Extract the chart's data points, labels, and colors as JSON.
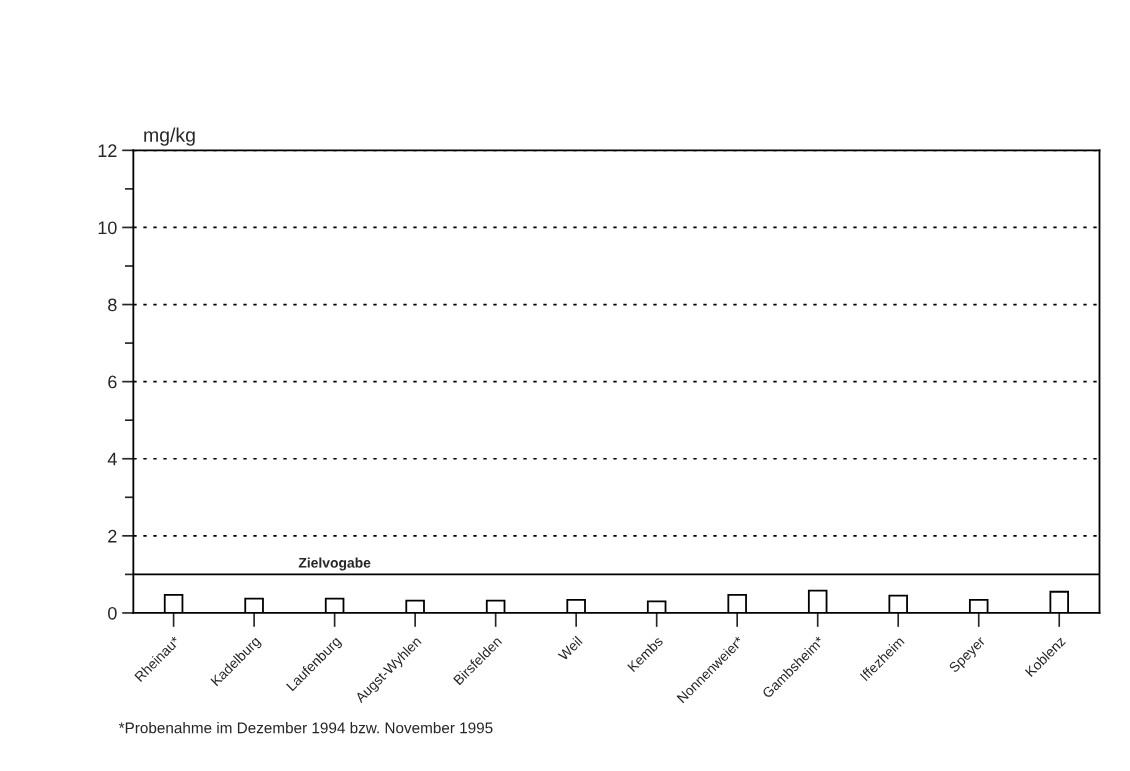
{
  "chart_data": {
    "type": "bar",
    "ylabel": "mg/kg",
    "categories": [
      "Rheinau*",
      "Kadelburg",
      "Laufenburg",
      "Augst-Wyhlen",
      "Birsfelden",
      "Weil",
      "Kembs",
      "Nonnenweier*",
      "Gambsheim*",
      "Iffezheim",
      "Speyer",
      "Koblenz"
    ],
    "series": [
      {
        "color": "#ffffff",
        "values": [
          0.47,
          0.37,
          0.37,
          0.32,
          0.32,
          0.34,
          0.3,
          0.47,
          0.58,
          0.45,
          0.34,
          0.55
        ]
      }
    ],
    "ylim": [
      0,
      12
    ],
    "yticks": [
      0,
      2,
      4,
      6,
      8,
      10,
      12
    ],
    "grid": "y",
    "line_style": "dotted",
    "ref_lines": [
      {
        "axis": "y",
        "value": 1,
        "label": "Zielvogabe",
        "color": "#000000",
        "line_style": "solid"
      }
    ],
    "annotations": [
      "*Probenahme im Dezember 1994 bzw. November 1995"
    ]
  }
}
